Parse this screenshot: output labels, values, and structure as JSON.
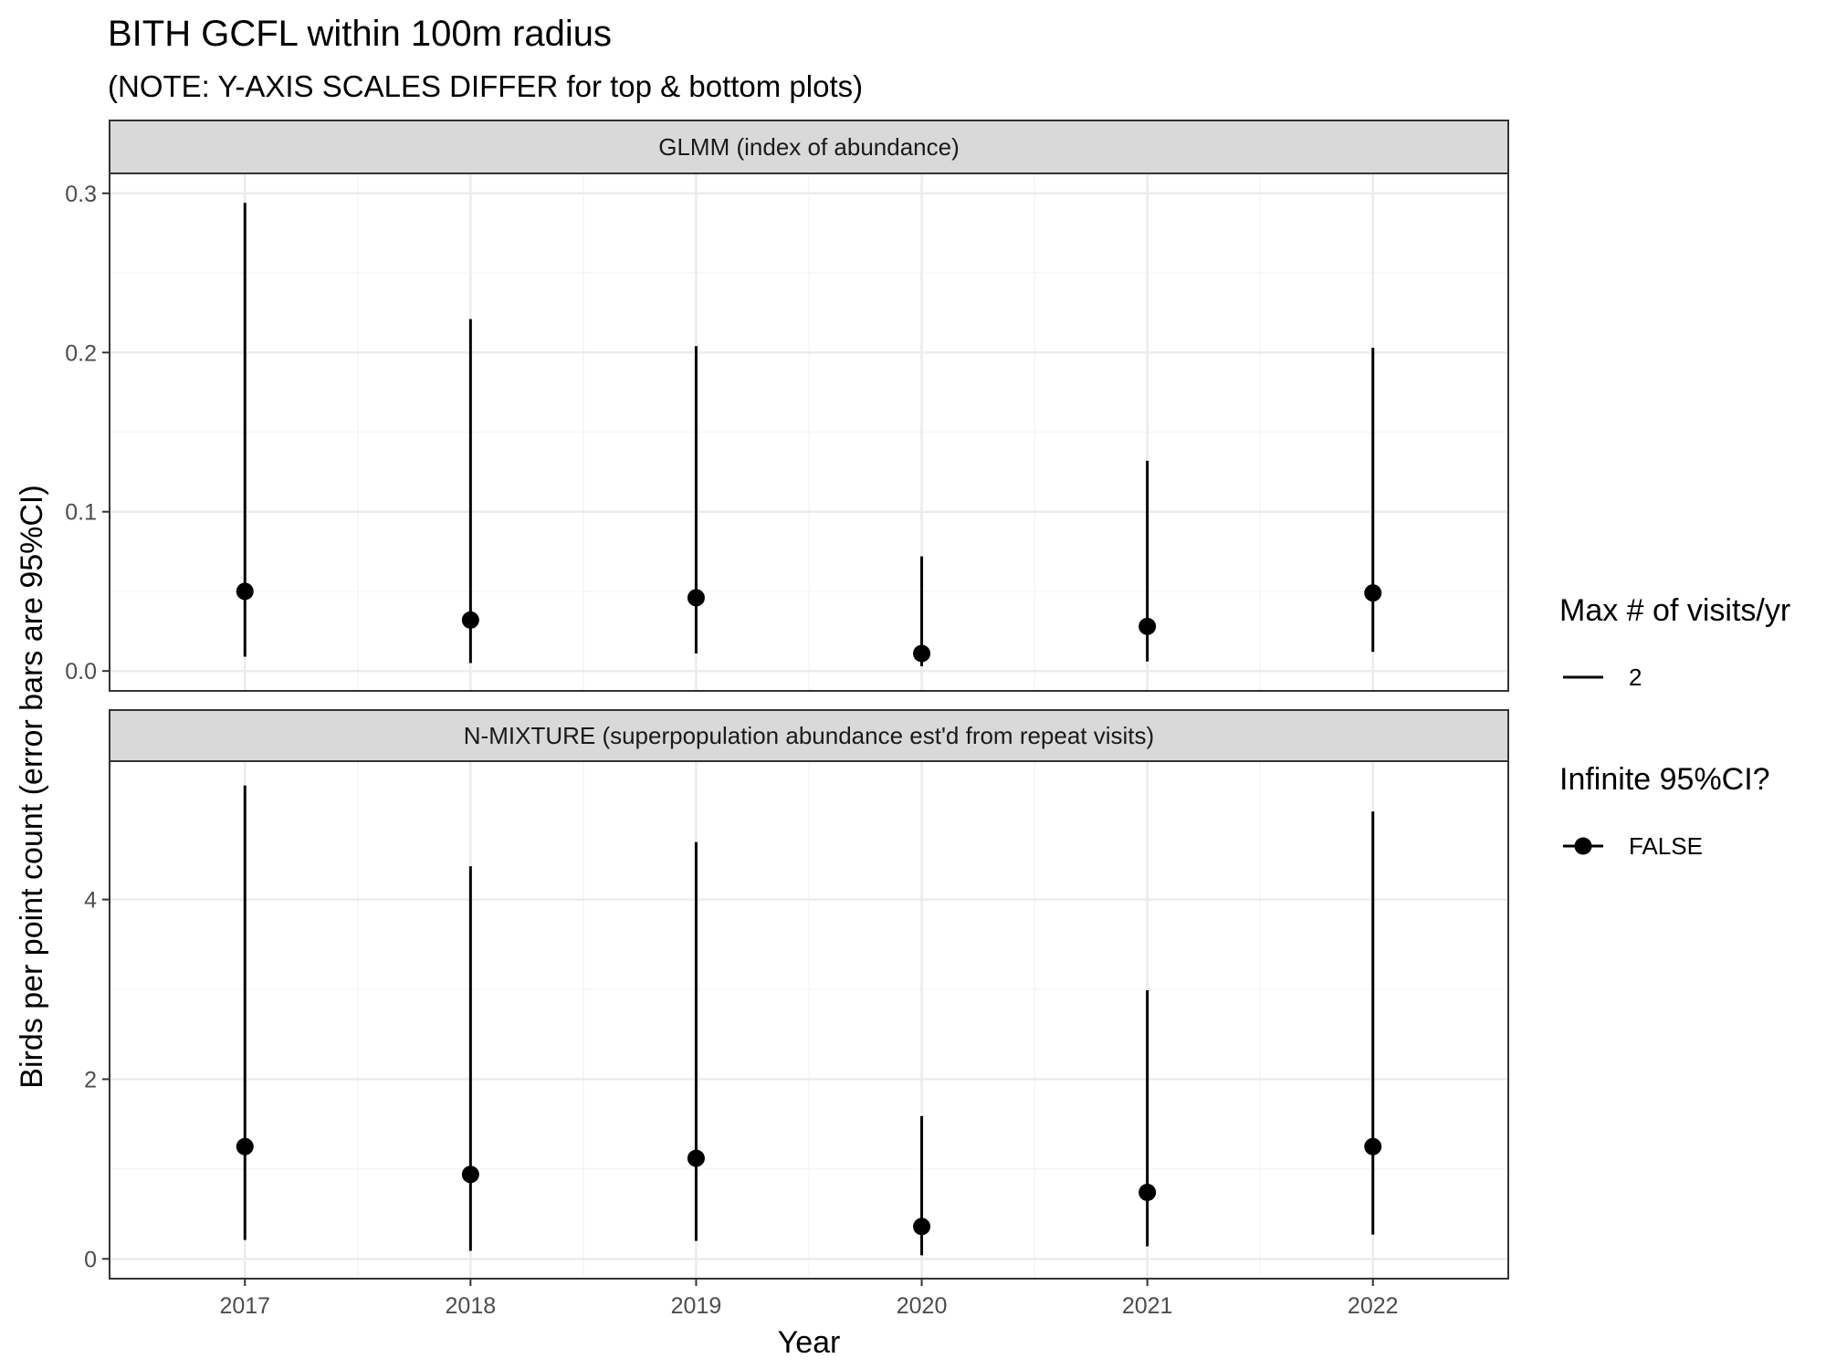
{
  "title": "BITH GCFL within 100m radius",
  "subtitle": "(NOTE: Y-AXIS SCALES DIFFER for top & bottom plots)",
  "xlabel": "Year",
  "ylabel": "Birds per point count (error bars are 95%CI)",
  "legend": {
    "groups": [
      {
        "title": "Max # of visits/yr",
        "entries": [
          {
            "label": "2",
            "symbol": "line"
          }
        ]
      },
      {
        "title": "Infinite 95%CI?",
        "entries": [
          {
            "label": "FALSE",
            "symbol": "point-line"
          }
        ]
      }
    ]
  },
  "colors": {
    "point": "#000000",
    "strip_fill": "#d9d9d9",
    "panel_border": "#333333",
    "grid_major": "#ebebeb",
    "grid_minor": "#f5f5f5",
    "axis_text": "#4d4d4d"
  },
  "chart_data": {
    "type": "scatter",
    "x": [
      "2017",
      "2018",
      "2019",
      "2020",
      "2021",
      "2022"
    ],
    "facets": [
      {
        "strip": "GLMM (index of abundance)",
        "ylim": [
          -0.0125,
          0.3125
        ],
        "yticks": [
          0.0,
          0.1,
          0.2,
          0.3
        ],
        "ytick_labels": [
          "0.0",
          "0.1",
          "0.2",
          "0.3"
        ],
        "estimate": [
          0.05,
          0.032,
          0.046,
          0.011,
          0.028,
          0.049
        ],
        "lower": [
          0.009,
          0.005,
          0.011,
          0.003,
          0.006,
          0.012
        ],
        "upper": [
          0.294,
          0.221,
          0.204,
          0.072,
          0.132,
          0.203
        ]
      },
      {
        "strip": "N-MIXTURE (superpopulation abundance est'd from repeat visits)",
        "ylim": [
          -0.22,
          5.54
        ],
        "yticks": [
          0,
          2,
          4
        ],
        "ytick_labels": [
          "0",
          "2",
          "4"
        ],
        "estimate": [
          1.25,
          0.94,
          1.12,
          0.36,
          0.74,
          1.25
        ],
        "lower": [
          0.21,
          0.09,
          0.2,
          0.04,
          0.14,
          0.27
        ],
        "upper": [
          5.27,
          4.37,
          4.64,
          1.59,
          2.99,
          4.98
        ]
      }
    ]
  }
}
